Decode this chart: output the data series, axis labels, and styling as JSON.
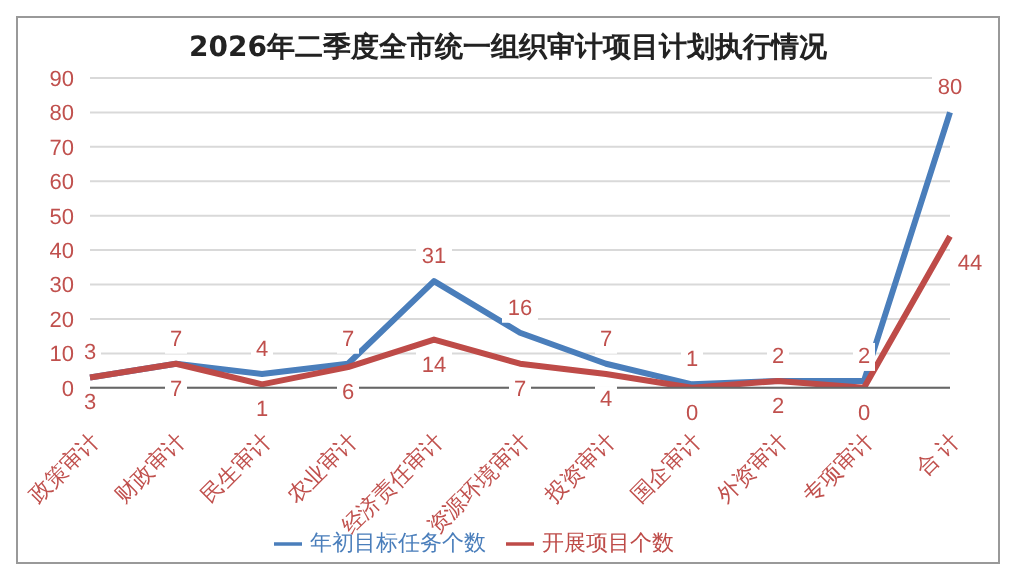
{
  "chart_data": {
    "type": "line",
    "title": "2026年二季度全市统一组织审计项目计划执行情况",
    "categories": [
      "政策审计",
      "财政审计",
      "民生审计",
      "农业审计",
      "经济责任审计",
      "资源环境审计",
      "投资审计",
      "国企审计",
      "外资审计",
      "专项审计",
      "合 计"
    ],
    "series": [
      {
        "name": "年初目标任务个数",
        "color": "#4a7ebb",
        "values": [
          3,
          7,
          4,
          7,
          31,
          16,
          7,
          1,
          2,
          2,
          80
        ]
      },
      {
        "name": "开展项目个数",
        "color": "#be4b48",
        "values": [
          3,
          7,
          1,
          6,
          14,
          7,
          4,
          0,
          2,
          0,
          44
        ]
      }
    ],
    "ylim": [
      0,
      90
    ],
    "yticks": [
      0,
      10,
      20,
      30,
      40,
      50,
      60,
      70,
      80,
      90
    ],
    "grid": "y",
    "legend": "bottom",
    "data_labels": true,
    "marker": "none",
    "line_style": "solid"
  }
}
